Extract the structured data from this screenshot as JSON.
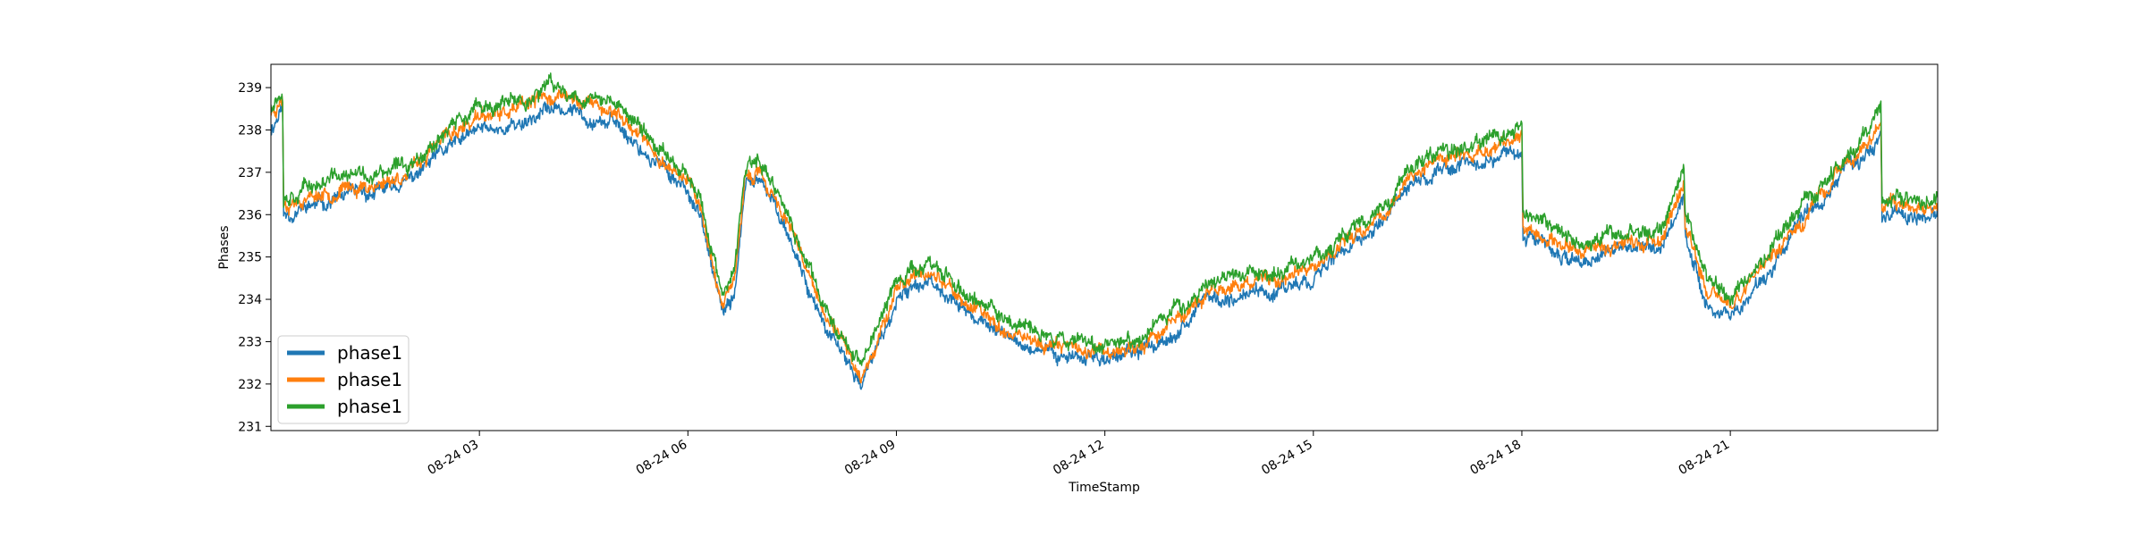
{
  "chart_data": {
    "type": "line",
    "title": "",
    "xlabel": "TimeStamp",
    "ylabel": "Phases",
    "ylim": [
      230.9,
      239.55
    ],
    "yticks": [
      231,
      232,
      233,
      234,
      235,
      236,
      237,
      238,
      239
    ],
    "xlim": [
      "2019-08-24 00:00",
      "2019-08-24 23:59"
    ],
    "xticks": [
      {
        "t": "2019-08-24 03:00",
        "label": "08-24 03"
      },
      {
        "t": "2019-08-24 06:00",
        "label": "08-24 06"
      },
      {
        "t": "2019-08-24 09:00",
        "label": "08-24 09"
      },
      {
        "t": "2019-08-24 12:00",
        "label": "08-24 12"
      },
      {
        "t": "2019-08-24 15:00",
        "label": "08-24 15"
      },
      {
        "t": "2019-08-24 18:00",
        "label": "08-24 18"
      },
      {
        "t": "2019-08-24 21:00",
        "label": "08-24 21"
      }
    ],
    "grid": false,
    "legend_position": "lower-left",
    "series": [
      {
        "name": "phase1",
        "color": "#1f77b4",
        "x": [
          "2019-08-24 00:00",
          "2019-08-24 00:10",
          "2019-08-24 00:11",
          "2019-08-24 01:00",
          "2019-08-24 01:30",
          "2019-08-24 02:00",
          "2019-08-24 02:30",
          "2019-08-24 03:00",
          "2019-08-24 03:30",
          "2019-08-24 04:00",
          "2019-08-24 04:30",
          "2019-08-24 05:00",
          "2019-08-24 05:30",
          "2019-08-24 06:00",
          "2019-08-24 06:10",
          "2019-08-24 06:30",
          "2019-08-24 06:40",
          "2019-08-24 06:50",
          "2019-08-24 07:00",
          "2019-08-24 07:20",
          "2019-08-24 07:40",
          "2019-08-24 08:00",
          "2019-08-24 08:30",
          "2019-08-24 09:00",
          "2019-08-24 09:15",
          "2019-08-24 09:16",
          "2019-08-24 09:30",
          "2019-08-24 10:00",
          "2019-08-24 10:30",
          "2019-08-24 11:00",
          "2019-08-24 11:30",
          "2019-08-24 12:00",
          "2019-08-24 12:30",
          "2019-08-24 13:00",
          "2019-08-24 13:30",
          "2019-08-24 14:00",
          "2019-08-24 14:30",
          "2019-08-24 15:00",
          "2019-08-24 15:30",
          "2019-08-24 16:00",
          "2019-08-24 16:30",
          "2019-08-24 17:00",
          "2019-08-24 17:30",
          "2019-08-24 18:00",
          "2019-08-24 18:01",
          "2019-08-24 18:30",
          "2019-08-24 19:00",
          "2019-08-24 19:30",
          "2019-08-24 20:00",
          "2019-08-24 20:20",
          "2019-08-24 20:21",
          "2019-08-24 20:40",
          "2019-08-24 21:00",
          "2019-08-24 21:30",
          "2019-08-24 22:00",
          "2019-08-24 22:30",
          "2019-08-24 23:00",
          "2019-08-24 23:10",
          "2019-08-24 23:11",
          "2019-08-24 23:59"
        ],
        "values": [
          238.0,
          238.6,
          236.0,
          236.4,
          236.5,
          236.8,
          237.5,
          238.0,
          238.1,
          238.5,
          238.4,
          238.1,
          237.3,
          236.6,
          236.0,
          233.6,
          234.1,
          236.7,
          236.8,
          236.0,
          234.6,
          233.2,
          232.0,
          233.9,
          234.2,
          234.3,
          234.5,
          233.7,
          233.2,
          232.8,
          232.7,
          232.6,
          232.7,
          233.3,
          234.0,
          234.1,
          234.2,
          234.6,
          235.2,
          235.8,
          236.8,
          237.2,
          237.3,
          237.6,
          235.5,
          235.1,
          234.9,
          235.2,
          235.2,
          236.5,
          235.5,
          234.0,
          233.6,
          234.6,
          235.7,
          236.7,
          237.5,
          238.0,
          236.0,
          236.0
        ],
        "noise": 0.22,
        "seed": 11
      },
      {
        "name": "phase1",
        "color": "#ff7f0e",
        "x": [
          "2019-08-24 00:00",
          "2019-08-24 00:10",
          "2019-08-24 00:11",
          "2019-08-24 01:00",
          "2019-08-24 01:30",
          "2019-08-24 02:00",
          "2019-08-24 02:30",
          "2019-08-24 03:00",
          "2019-08-24 03:30",
          "2019-08-24 04:00",
          "2019-08-24 04:30",
          "2019-08-24 05:00",
          "2019-08-24 05:30",
          "2019-08-24 06:00",
          "2019-08-24 06:10",
          "2019-08-24 06:30",
          "2019-08-24 06:40",
          "2019-08-24 06:50",
          "2019-08-24 07:00",
          "2019-08-24 07:20",
          "2019-08-24 07:40",
          "2019-08-24 08:00",
          "2019-08-24 08:30",
          "2019-08-24 09:00",
          "2019-08-24 09:15",
          "2019-08-24 09:16",
          "2019-08-24 09:30",
          "2019-08-24 10:00",
          "2019-08-24 10:30",
          "2019-08-24 11:00",
          "2019-08-24 11:30",
          "2019-08-24 12:00",
          "2019-08-24 12:30",
          "2019-08-24 13:00",
          "2019-08-24 13:30",
          "2019-08-24 14:00",
          "2019-08-24 14:30",
          "2019-08-24 15:00",
          "2019-08-24 15:30",
          "2019-08-24 16:00",
          "2019-08-24 16:30",
          "2019-08-24 17:00",
          "2019-08-24 17:30",
          "2019-08-24 18:00",
          "2019-08-24 18:01",
          "2019-08-24 18:30",
          "2019-08-24 19:00",
          "2019-08-24 19:30",
          "2019-08-24 20:00",
          "2019-08-24 20:20",
          "2019-08-24 20:21",
          "2019-08-24 20:40",
          "2019-08-24 21:00",
          "2019-08-24 21:30",
          "2019-08-24 22:00",
          "2019-08-24 22:30",
          "2019-08-24 23:00",
          "2019-08-24 23:10",
          "2019-08-24 23:11",
          "2019-08-24 23:59"
        ],
        "values": [
          238.4,
          238.8,
          236.3,
          236.6,
          236.7,
          237.0,
          237.8,
          238.3,
          238.4,
          238.8,
          238.7,
          238.4,
          237.5,
          236.8,
          236.3,
          233.8,
          234.3,
          236.9,
          237.0,
          236.2,
          234.8,
          233.5,
          232.2,
          234.2,
          234.5,
          234.5,
          234.7,
          233.9,
          233.4,
          233.0,
          232.9,
          232.8,
          232.9,
          233.5,
          234.2,
          234.3,
          234.4,
          234.8,
          235.4,
          236.0,
          237.1,
          237.4,
          237.5,
          237.8,
          235.7,
          235.3,
          235.1,
          235.4,
          235.4,
          236.7,
          235.7,
          234.2,
          233.8,
          234.8,
          235.9,
          236.9,
          237.8,
          238.3,
          236.2,
          236.2
        ],
        "noise": 0.22,
        "seed": 23
      },
      {
        "name": "phase1",
        "color": "#2ca02c",
        "x": [
          "2019-08-24 00:00",
          "2019-08-24 00:10",
          "2019-08-24 00:11",
          "2019-08-24 01:00",
          "2019-08-24 01:30",
          "2019-08-24 02:00",
          "2019-08-24 02:30",
          "2019-08-24 03:00",
          "2019-08-24 03:30",
          "2019-08-24 04:00",
          "2019-08-24 04:30",
          "2019-08-24 05:00",
          "2019-08-24 05:30",
          "2019-08-24 06:00",
          "2019-08-24 06:10",
          "2019-08-24 06:30",
          "2019-08-24 06:40",
          "2019-08-24 06:50",
          "2019-08-24 07:00",
          "2019-08-24 07:20",
          "2019-08-24 07:40",
          "2019-08-24 08:00",
          "2019-08-24 08:30",
          "2019-08-24 09:00",
          "2019-08-24 09:15",
          "2019-08-24 09:16",
          "2019-08-24 09:30",
          "2019-08-24 10:00",
          "2019-08-24 10:30",
          "2019-08-24 11:00",
          "2019-08-24 11:30",
          "2019-08-24 12:00",
          "2019-08-24 12:30",
          "2019-08-24 13:00",
          "2019-08-24 13:30",
          "2019-08-24 14:00",
          "2019-08-24 14:30",
          "2019-08-24 15:00",
          "2019-08-24 15:30",
          "2019-08-24 16:00",
          "2019-08-24 16:30",
          "2019-08-24 17:00",
          "2019-08-24 17:30",
          "2019-08-24 18:00",
          "2019-08-24 18:01",
          "2019-08-24 18:30",
          "2019-08-24 19:00",
          "2019-08-24 19:30",
          "2019-08-24 20:00",
          "2019-08-24 20:20",
          "2019-08-24 20:21",
          "2019-08-24 20:40",
          "2019-08-24 21:00",
          "2019-08-24 21:30",
          "2019-08-24 22:00",
          "2019-08-24 22:30",
          "2019-08-24 23:00",
          "2019-08-24 23:10",
          "2019-08-24 23:11",
          "2019-08-24 23:59"
        ],
        "values": [
          238.6,
          239.0,
          236.5,
          236.9,
          236.9,
          237.2,
          238.0,
          238.5,
          238.6,
          239.0,
          238.8,
          238.6,
          237.7,
          237.0,
          236.5,
          234.0,
          234.6,
          237.1,
          237.2,
          236.4,
          235.0,
          233.7,
          232.5,
          234.4,
          234.7,
          234.7,
          234.9,
          234.1,
          233.6,
          233.2,
          233.1,
          233.0,
          233.1,
          233.7,
          234.4,
          234.6,
          234.6,
          235.0,
          235.6,
          236.2,
          237.3,
          237.6,
          237.7,
          238.1,
          235.9,
          235.6,
          235.3,
          235.6,
          235.6,
          237.0,
          236.0,
          234.5,
          234.0,
          235.0,
          236.1,
          237.1,
          238.0,
          238.5,
          236.3,
          236.4
        ],
        "noise": 0.24,
        "seed": 37
      }
    ]
  }
}
